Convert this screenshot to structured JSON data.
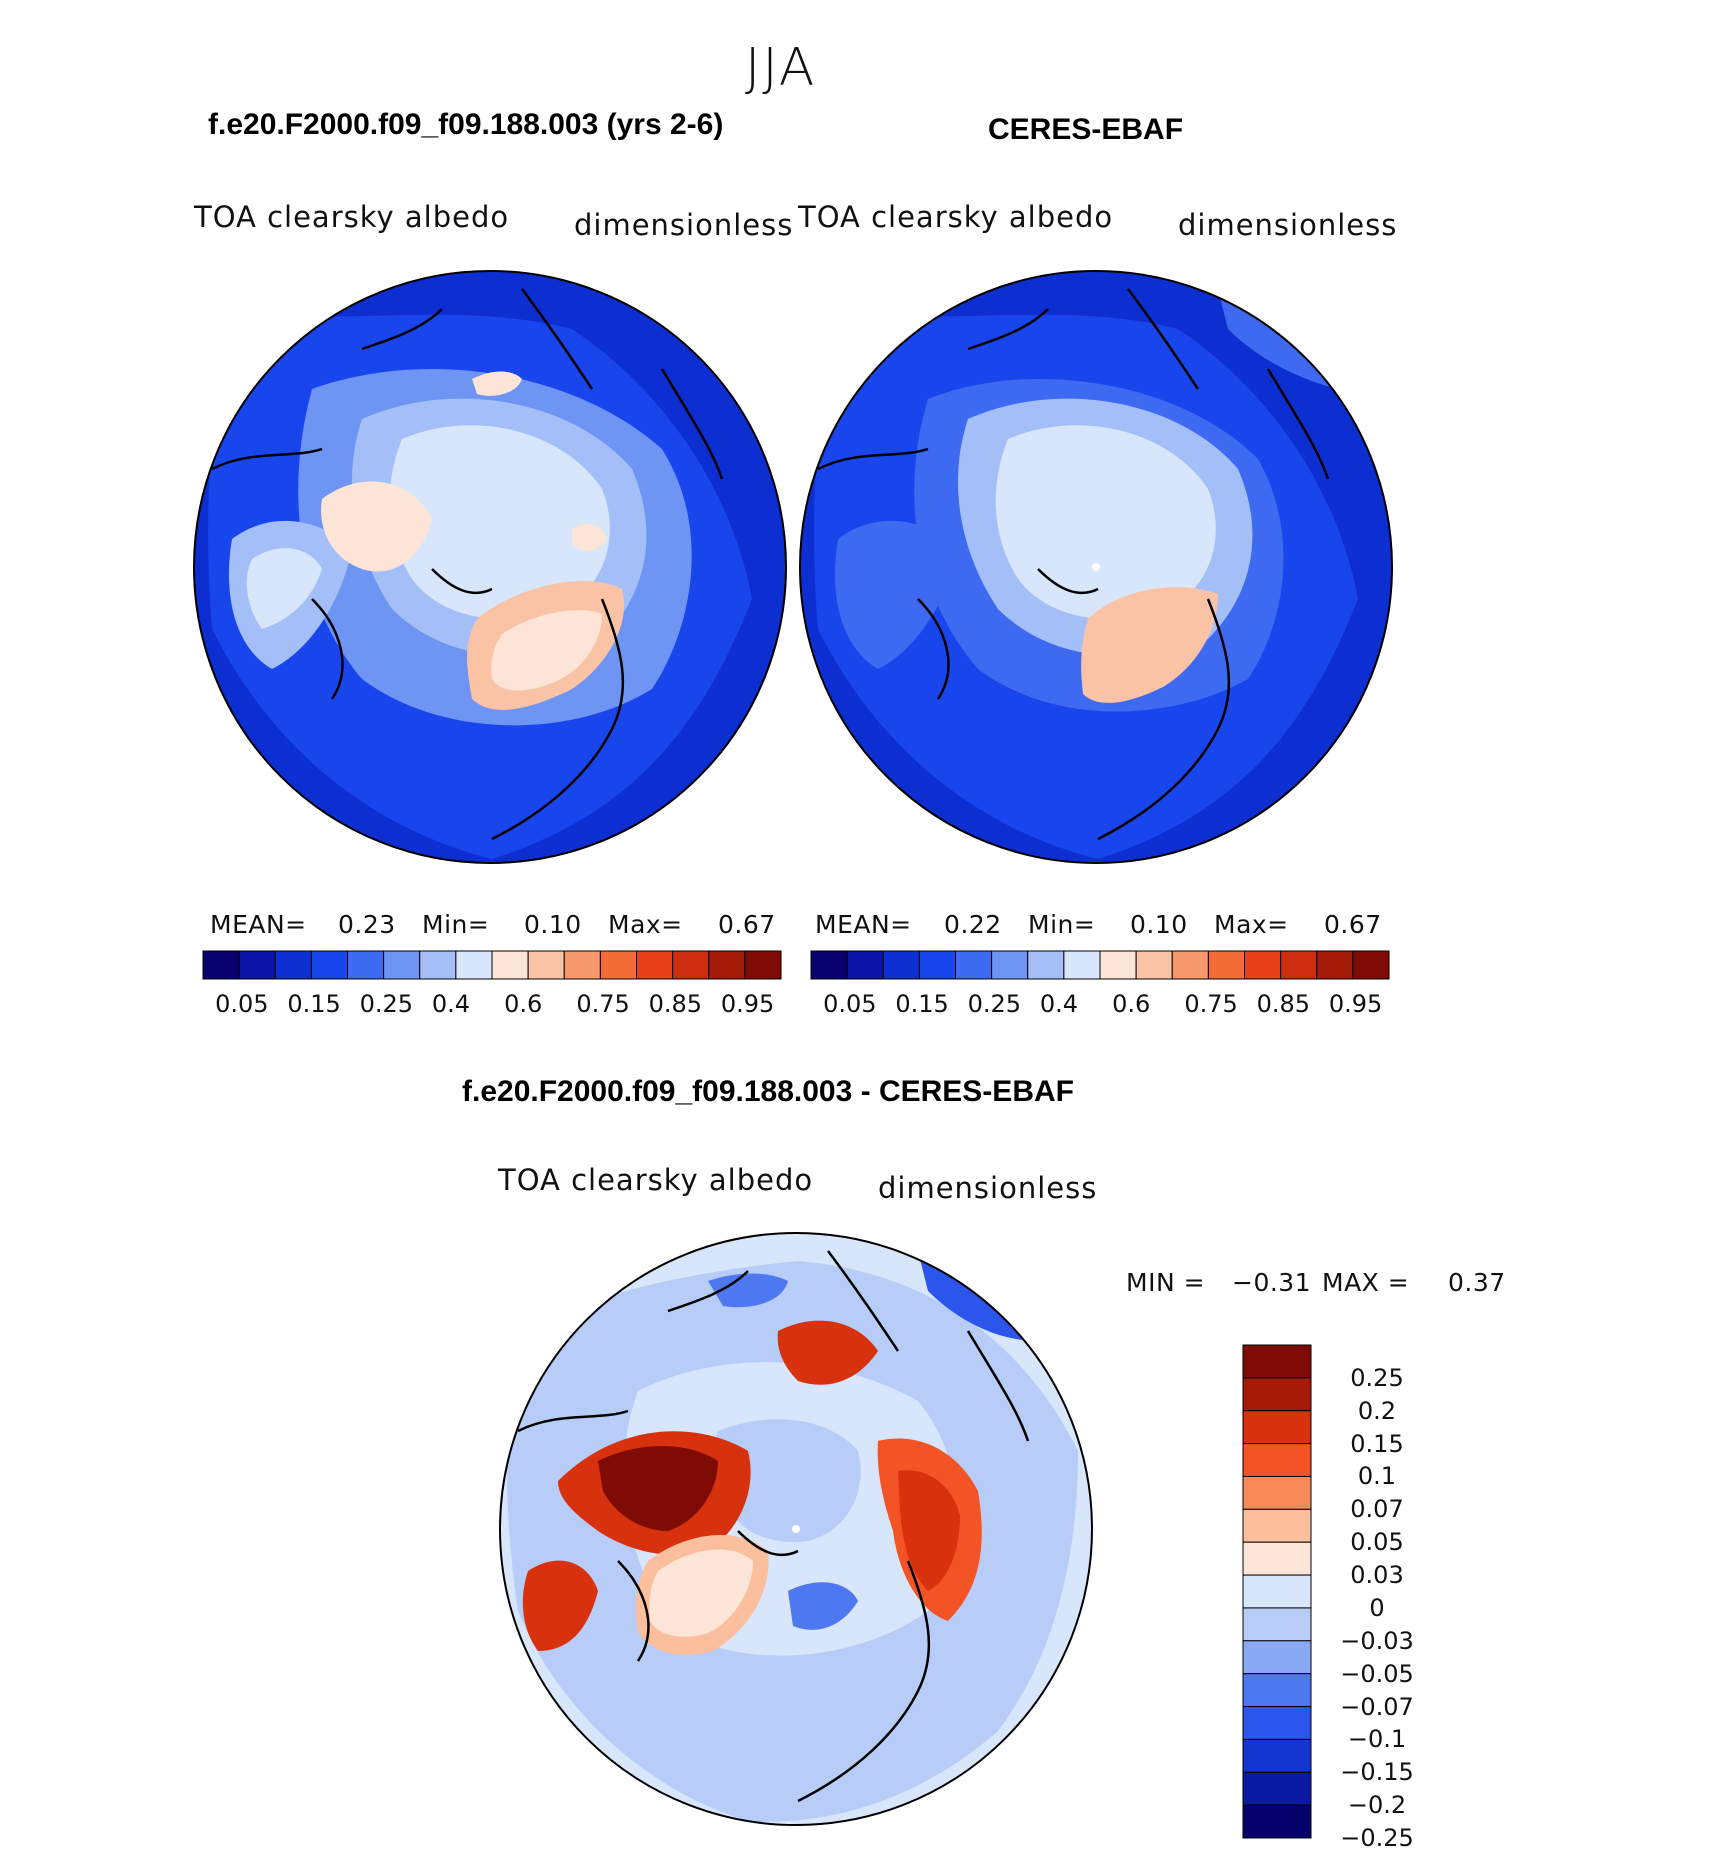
{
  "season": "JJA",
  "panels": [
    {
      "title": "f.e20.F2000.f09_f09.188.003 (yrs 2-6)",
      "variable": "TOA clearsky albedo",
      "units": "dimensionless",
      "stats": {
        "mean_label": "MEAN=",
        "mean": "0.23",
        "min_label": "Min=",
        "min": "0.10",
        "max_label": "Max=",
        "max": "0.67"
      }
    },
    {
      "title": "CERES-EBAF",
      "variable": "TOA clearsky albedo",
      "units": "dimensionless",
      "stats": {
        "mean_label": "MEAN=",
        "mean": "0.22",
        "min_label": "Min=",
        "min": "0.10",
        "max_label": "Max=",
        "max": "0.67"
      }
    }
  ],
  "colorbar_abs": {
    "colors": [
      "#08006e",
      "#0b15a8",
      "#0d2fd2",
      "#1846ec",
      "#3d6af0",
      "#6e94f4",
      "#a4bff8",
      "#d8e6fb",
      "#fce5d6",
      "#fac3a6",
      "#f6986b",
      "#f36b35",
      "#e8411a",
      "#cc2d0e",
      "#a61a08",
      "#7e0b04"
    ],
    "tick_labels": [
      "0.05",
      "0.15",
      "0.25",
      "0.4",
      "0.6",
      "0.75",
      "0.85",
      "0.95"
    ]
  },
  "diff_panel": {
    "title": "f.e20.F2000.f09_f09.188.003 - CERES-EBAF",
    "variable": "TOA clearsky albedo",
    "units": "dimensionless",
    "stats": {
      "min_label": "MIN =",
      "min": "−0.31",
      "max_label": "MAX =",
      "max": "0.37"
    }
  },
  "colorbar_diff": {
    "colors": [
      "#7e0b04",
      "#a61a08",
      "#d8310d",
      "#f45425",
      "#f78a58",
      "#fbbf9d",
      "#fde6d8",
      "#d8e6fb",
      "#b7cdf8",
      "#8aa9f5",
      "#4d78f0",
      "#2b55eb",
      "#1335d0",
      "#0a1aa3",
      "#06006a"
    ],
    "tick_labels": [
      "0.25",
      "0.2",
      "0.15",
      "0.1",
      "0.07",
      "0.05",
      "0.03",
      "0",
      "−0.03",
      "−0.05",
      "−0.07",
      "−0.1",
      "−0.15",
      "−0.2",
      "−0.25"
    ]
  }
}
